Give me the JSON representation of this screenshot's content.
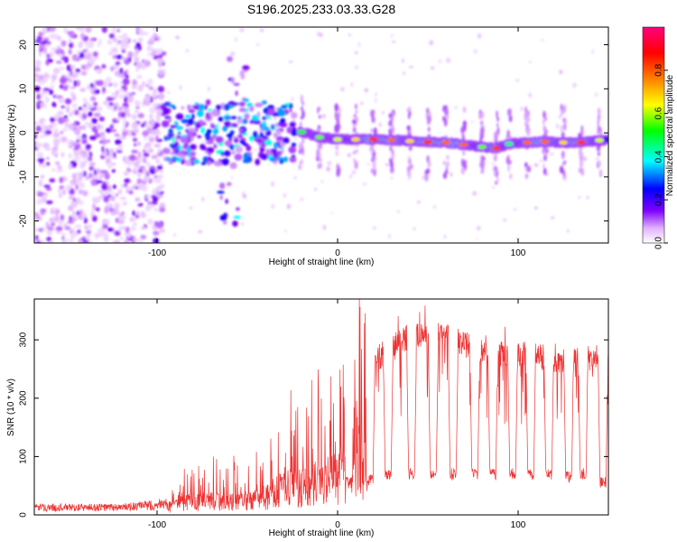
{
  "chart_data": [
    {
      "type": "heatmap",
      "title": "S196.2025.233.03.33.G28",
      "xlabel": "Height of straight line (km)",
      "ylabel": "Frequency (Hz)",
      "xlim": [
        -168,
        150
      ],
      "ylim": [
        -25,
        24
      ],
      "xticks": [
        -100,
        0,
        100
      ],
      "xtick_labels": [
        "-100",
        "0",
        "100"
      ],
      "yticks": [
        -20,
        -10,
        0,
        10,
        20
      ],
      "ytick_labels": [
        "-20",
        "-10",
        "0",
        "10",
        "20"
      ],
      "colorbar": {
        "label": "Normalized spectral amplitude",
        "range": [
          0,
          1
        ],
        "ticks": [
          0,
          0.2,
          0.4,
          0.6,
          0.8
        ],
        "tick_labels": [
          "0.0",
          "0.2",
          "0.4",
          "0.6",
          "0.8"
        ],
        "colors": [
          "#ffffff",
          "#e0b0ff",
          "#7f00ff",
          "#0000ff",
          "#00ffff",
          "#00ff00",
          "#ffff00",
          "#ff8000",
          "#ff0000",
          "#ff0080"
        ]
      },
      "noise_region": {
        "x": [
          -168,
          -96
        ],
        "y": [
          -25,
          24
        ],
        "amplitude": [
          0.05,
          0.25
        ]
      },
      "signal_track": [
        {
          "x": -20,
          "y": 0.2,
          "amp": 0.55
        },
        {
          "x": -10,
          "y": -1.0,
          "amp": 0.6
        },
        {
          "x": 0,
          "y": -1.5,
          "amp": 0.65
        },
        {
          "x": 10,
          "y": -1.5,
          "amp": 0.7
        },
        {
          "x": 20,
          "y": -1.5,
          "amp": 0.85
        },
        {
          "x": 30,
          "y": -1.6,
          "amp": 0.8
        },
        {
          "x": 40,
          "y": -1.9,
          "amp": 0.7
        },
        {
          "x": 50,
          "y": -2.1,
          "amp": 0.85
        },
        {
          "x": 60,
          "y": -2.2,
          "amp": 0.8
        },
        {
          "x": 70,
          "y": -2.7,
          "amp": 0.8
        },
        {
          "x": 80,
          "y": -3.2,
          "amp": 0.6
        },
        {
          "x": 88,
          "y": -3.5,
          "amp": 0.85
        },
        {
          "x": 95,
          "y": -2.5,
          "amp": 0.5
        },
        {
          "x": 105,
          "y": -2.2,
          "amp": 0.8
        },
        {
          "x": 115,
          "y": -2.0,
          "amp": 0.8
        },
        {
          "x": 125,
          "y": -2.2,
          "amp": 0.7
        },
        {
          "x": 135,
          "y": -2.2,
          "amp": 0.85
        },
        {
          "x": 145,
          "y": -1.7,
          "amp": 0.65
        }
      ]
    },
    {
      "type": "line",
      "title": "",
      "xlabel": "Height of straight line (km)",
      "ylabel": "SNR (10 * v/v)",
      "xlim": [
        -168,
        150
      ],
      "ylim": [
        0,
        370
      ],
      "xticks": [
        -100,
        0,
        100
      ],
      "xtick_labels": [
        "-100",
        "0",
        "100"
      ],
      "yticks": [
        0,
        100,
        200,
        300
      ],
      "ytick_labels": [
        "0",
        "100",
        "200",
        "300"
      ],
      "series": [
        {
          "name": "SNR",
          "color": "#ee3333",
          "envelope_x": [
            -168,
            -150,
            -120,
            -100,
            -90,
            -80,
            -70,
            -60,
            -50,
            -40,
            -30,
            -20,
            -10,
            0,
            10,
            20,
            30,
            40,
            50,
            60,
            70,
            80,
            90,
            100,
            110,
            120,
            130,
            140,
            150
          ],
          "envelope_y": [
            15,
            15,
            15,
            20,
            40,
            55,
            60,
            50,
            60,
            80,
            110,
            120,
            130,
            165,
            215,
            285,
            310,
            330,
            335,
            330,
            315,
            305,
            300,
            300,
            295,
            290,
            285,
            290,
            300
          ],
          "dip_centers_x": [
            6,
            18,
            28,
            41,
            53,
            64,
            76,
            86,
            97,
            107,
            117,
            128,
            136,
            147
          ],
          "dip_floor_y": [
            45,
            50,
            60,
            60,
            60,
            60,
            60,
            60,
            60,
            60,
            60,
            55,
            60,
            45
          ]
        }
      ]
    }
  ]
}
